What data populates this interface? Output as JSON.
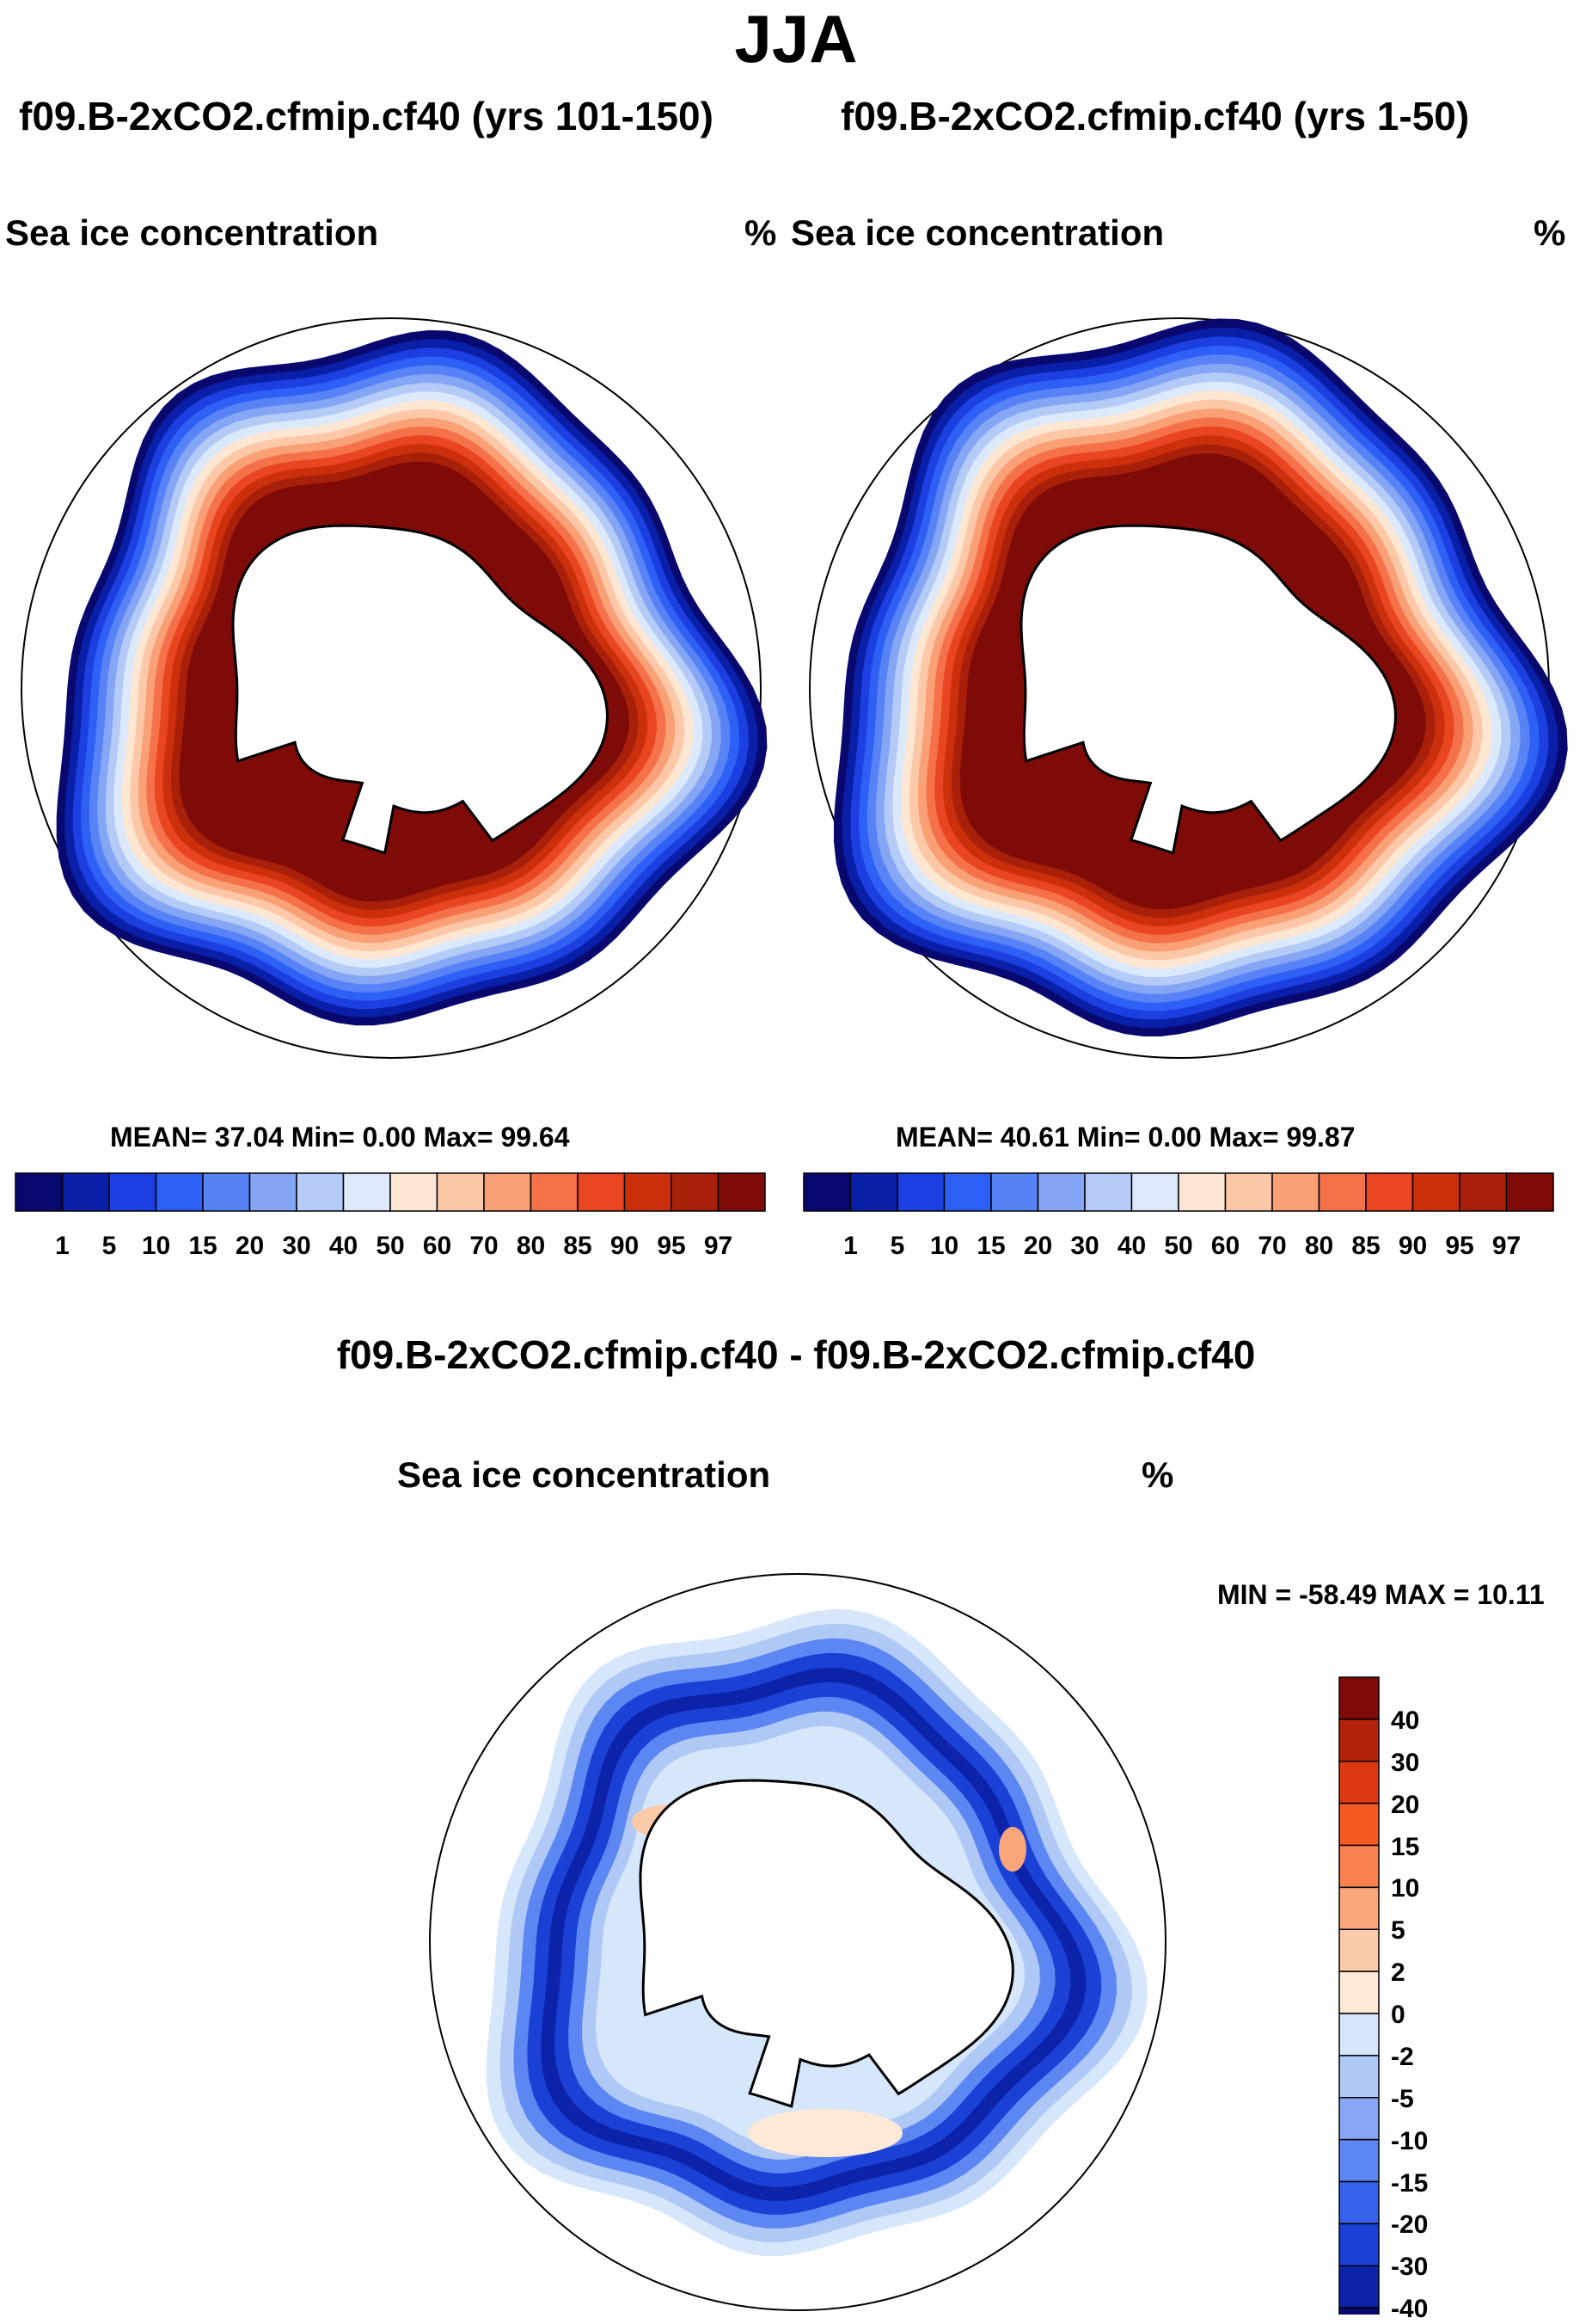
{
  "figure": {
    "title": "JJA"
  },
  "panels": [
    {
      "case": "f09.B-2xCO2.cfmip.cf40 (yrs 101-150)",
      "variable": "Sea ice concentration",
      "units": "%",
      "stats": "MEAN=  37.04  Min=   0.00  Max=  99.64"
    },
    {
      "case": "f09.B-2xCO2.cfmip.cf40 (yrs 1-50)",
      "variable": "Sea ice concentration",
      "units": "%",
      "stats": "MEAN=  40.61  Min=   0.00  Max=  99.87"
    }
  ],
  "colorbar": {
    "levels": [
      "1",
      "5",
      "10",
      "15",
      "20",
      "30",
      "40",
      "50",
      "60",
      "70",
      "80",
      "85",
      "90",
      "95",
      "97"
    ],
    "colors": [
      "#08086e",
      "#0a1fa8",
      "#1b3fe0",
      "#2e60f5",
      "#5783f6",
      "#85a5f5",
      "#b5cbf7",
      "#dbe9fb",
      "#fde6d2",
      "#fcc8a8",
      "#f9a077",
      "#f5714a",
      "#e84520",
      "#cc2f0c",
      "#a8200a",
      "#7e0b08"
    ]
  },
  "difference": {
    "title": "f09.B-2xCO2.cfmip.cf40 - f09.B-2xCO2.cfmip.cf40",
    "variable": "Sea ice concentration",
    "units": "%",
    "minmax": "MIN = -58.49 MAX =  10.11",
    "colorbar": {
      "levels": [
        "40",
        "30",
        "20",
        "15",
        "10",
        "5",
        "2",
        "0",
        "-2",
        "-5",
        "-10",
        "-15",
        "-20",
        "-30",
        "-40"
      ],
      "colors": [
        "#7e0b08",
        "#b3230b",
        "#dd3a12",
        "#f45a22",
        "#f7814f",
        "#f9a67d",
        "#fbcaa9",
        "#fde9d7",
        "#d7e7fb",
        "#b0c8f6",
        "#87a6f4",
        "#5c86f1",
        "#3562eb",
        "#1a40d6",
        "#0c22a8",
        "#060a70"
      ]
    }
  },
  "chart_data": {
    "type": "heatmap",
    "projection": "south polar stereographic",
    "region": "Southern Ocean around Antarctica",
    "season": "JJA",
    "variable": "Sea ice concentration",
    "units": "%",
    "panels": [
      {
        "label": "yrs 101-150",
        "mean": 37.04,
        "min": 0.0,
        "max": 99.64
      },
      {
        "label": "yrs 1-50",
        "mean": 40.61,
        "min": 0.0,
        "max": 99.87
      },
      {
        "label": "difference",
        "min": -58.49,
        "max": 10.11
      }
    ]
  }
}
